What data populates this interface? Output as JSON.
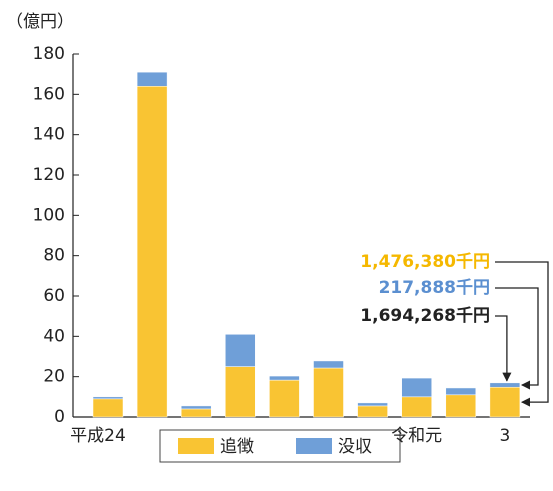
{
  "chart_data": {
    "type": "stacked_bar",
    "y_label": "（億円）",
    "categories": [
      "平成24",
      null,
      null,
      null,
      null,
      null,
      null,
      "令和元",
      null,
      "3"
    ],
    "series": [
      {
        "name": "追徴",
        "color": "#f9c433",
        "values": [
          9,
          164,
          4,
          25,
          18.3,
          24.3,
          5.5,
          10,
          11,
          14.76
        ]
      },
      {
        "name": "没収",
        "color": "#6f9fd8",
        "values": [
          1,
          7,
          1.5,
          16,
          2,
          3.5,
          1.5,
          9.3,
          3.4,
          2.18
        ]
      }
    ],
    "ylim": [
      0,
      180
    ],
    "yticks": [
      0,
      20,
      40,
      60,
      80,
      100,
      120,
      140,
      160,
      180
    ],
    "annotations": [
      {
        "text": "1,476,380千円",
        "color": "#f5b800"
      },
      {
        "text": "217,888千円",
        "color": "#5b8fd0"
      },
      {
        "text": "1,694,268千円",
        "color": "#222222"
      }
    ]
  }
}
